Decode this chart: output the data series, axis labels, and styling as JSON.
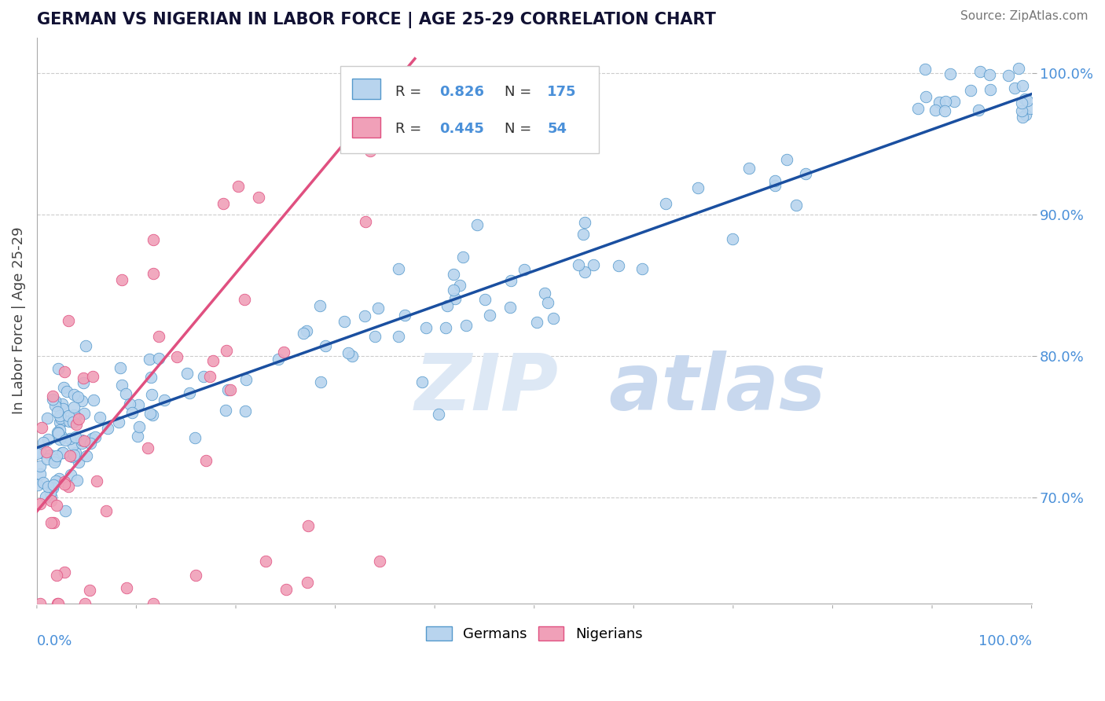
{
  "title": "GERMAN VS NIGERIAN IN LABOR FORCE | AGE 25-29 CORRELATION CHART",
  "source": "Source: ZipAtlas.com",
  "ylabel": "In Labor Force | Age 25-29",
  "yticks_right": [
    "70.0%",
    "80.0%",
    "90.0%",
    "100.0%"
  ],
  "yticks_right_vals": [
    0.7,
    0.8,
    0.9,
    1.0
  ],
  "blue_color": "#4a90d9",
  "pink_color": "#e05080",
  "blue_scatter_face": "#b8d4ee",
  "blue_scatter_edge": "#5599cc",
  "pink_scatter_face": "#f0a0b8",
  "pink_scatter_edge": "#e05080",
  "blue_line_color": "#1a4fa0",
  "pink_line_color": "#e05080",
  "label_color": "#4a90d9",
  "watermark_color": "#dde8f5",
  "xmin": 0.0,
  "xmax": 1.0,
  "ymin": 0.625,
  "ymax": 1.025,
  "blue_R": 0.826,
  "blue_N": 175,
  "pink_R": 0.445,
  "pink_N": 54,
  "blue_line_x0": 0.0,
  "blue_line_x1": 1.0,
  "blue_line_y0": 0.735,
  "blue_line_y1": 0.985,
  "pink_line_x0": 0.0,
  "pink_line_x1": 0.38,
  "pink_line_y0": 0.69,
  "pink_line_y1": 1.01,
  "legend_label1": "Germans",
  "legend_label2": "Nigerians"
}
